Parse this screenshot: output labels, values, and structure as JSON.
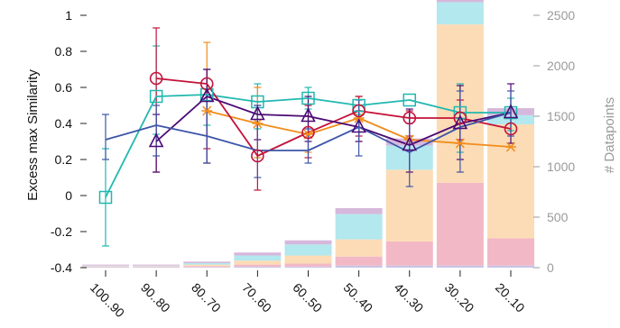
{
  "chart_data": {
    "type": "line",
    "ylabel": "Excess max Similarity",
    "y2label": "# Datapoints",
    "categories": [
      "100..90",
      "90..80",
      "80..70",
      "70..60",
      "60..50",
      "50..40",
      "40..30",
      "30..20",
      "20..10"
    ],
    "ylim": [
      -0.4,
      1.0
    ],
    "yticks": [
      "1",
      "0.8",
      "0.6",
      "0.4",
      "0.2",
      "0",
      "-0.2",
      "-0.4"
    ],
    "y2lim": [
      0,
      2500
    ],
    "y2ticks": [
      "2500",
      "2000",
      "1500",
      "1000",
      "500",
      "0"
    ],
    "grid": false,
    "stack_colors": [
      "#c9c3e6",
      "#f2b8c6",
      "#fcdcb6",
      "#b2e8ee",
      "#d6b8dc"
    ],
    "bars": [
      {
        "segments": [
          5,
          5,
          5,
          5,
          10
        ]
      },
      {
        "segments": [
          5,
          5,
          5,
          5,
          10
        ]
      },
      {
        "segments": [
          5,
          10,
          15,
          15,
          15
        ]
      },
      {
        "segments": [
          10,
          20,
          40,
          50,
          30
        ]
      },
      {
        "segments": [
          10,
          30,
          80,
          110,
          40
        ]
      },
      {
        "segments": [
          20,
          90,
          170,
          250,
          60
        ]
      },
      {
        "segments": [
          20,
          240,
          710,
          240,
          70
        ]
      },
      {
        "segments": [
          20,
          820,
          1570,
          220,
          90
        ]
      },
      {
        "segments": [
          20,
          270,
          1130,
          90,
          70
        ]
      }
    ],
    "series": [
      {
        "color": "#20b8b0",
        "marker": "square",
        "values": [
          -0.01,
          0.55,
          0.56,
          0.52,
          0.54,
          0.5,
          0.53,
          0.46,
          0.46
        ],
        "err": [
          [
            -0.28,
            0.26
          ],
          [
            0.34,
            0.83
          ],
          [
            0.39,
            0.7
          ],
          [
            0.37,
            0.62
          ],
          [
            0.48,
            0.6
          ],
          [
            0.45,
            0.55
          ],
          null,
          [
            0.24,
            0.62
          ],
          [
            0.36,
            0.54
          ]
        ]
      },
      {
        "color": "#f28c1a",
        "marker": "star",
        "values": [
          null,
          null,
          0.47,
          0.4,
          0.34,
          0.43,
          0.31,
          0.29,
          0.27
        ],
        "err": [
          null,
          null,
          [
            0.18,
            0.85
          ],
          [
            0.21,
            0.6
          ],
          [
            0.24,
            0.44
          ],
          [
            0.3,
            0.55
          ],
          null,
          null,
          null
        ]
      },
      {
        "color": "#c3123a",
        "marker": "circle",
        "values": [
          null,
          0.65,
          0.62,
          0.22,
          0.35,
          0.47,
          0.43,
          0.43,
          0.37
        ],
        "err": [
          null,
          [
            0.13,
            0.93
          ],
          [
            0.26,
            0.7
          ],
          [
            0.03,
            0.4
          ],
          [
            0.21,
            0.5
          ],
          [
            0.33,
            0.55
          ],
          [
            0.33,
            0.47
          ],
          [
            0.31,
            0.53
          ],
          null
        ]
      },
      {
        "color": "#4b0a75",
        "marker": "triangle",
        "values": [
          null,
          0.3,
          0.55,
          0.45,
          0.44,
          0.38,
          0.28,
          0.4,
          0.46
        ],
        "err": [
          null,
          [
            0.13,
            0.45
          ],
          [
            0.18,
            0.7
          ],
          [
            0.31,
            0.5
          ],
          [
            0.3,
            0.55
          ],
          [
            0.3,
            0.47
          ],
          [
            0.13,
            0.48
          ],
          [
            0.2,
            0.61
          ],
          [
            0.29,
            0.62
          ]
        ]
      },
      {
        "color": "#3d55a8",
        "marker": "none",
        "values": [
          0.31,
          0.39,
          0.33,
          0.25,
          0.25,
          0.38,
          0.24,
          0.38,
          0.46
        ],
        "err": [
          [
            0.2,
            0.45
          ],
          [
            0.22,
            0.5
          ],
          [
            0.18,
            0.56
          ],
          [
            0.1,
            0.5
          ],
          [
            0.18,
            0.37
          ],
          [
            0.22,
            0.53
          ],
          [
            0.05,
            0.4
          ],
          [
            0.13,
            0.58
          ],
          [
            0.33,
            0.58
          ]
        ]
      }
    ]
  }
}
